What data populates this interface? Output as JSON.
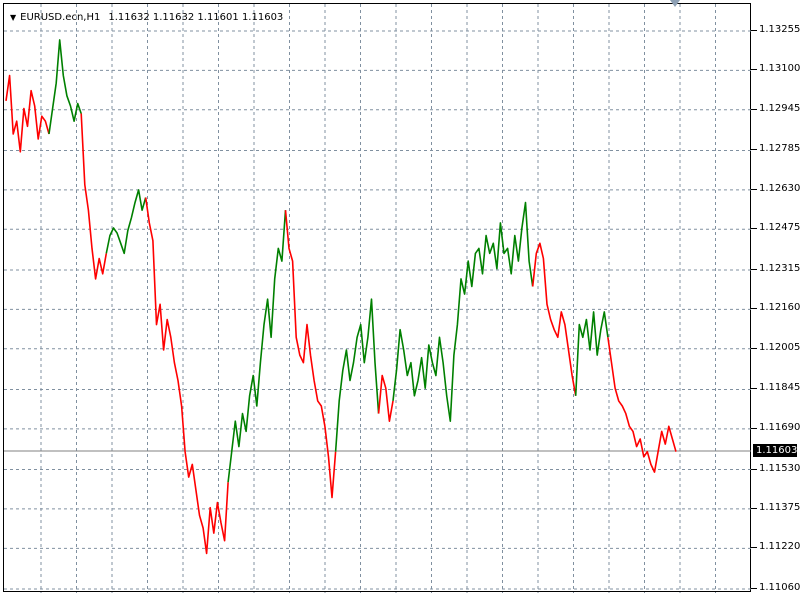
{
  "header": {
    "symbol": "EURUSD.ecn,H1",
    "ohlc": "1.11632 1.11632 1.11601 1.11603",
    "collapse_icon": "triangle-down-icon"
  },
  "price_scale": {
    "labels": [
      "1.13255",
      "1.13100",
      "1.12945",
      "1.12785",
      "1.12630",
      "1.12475",
      "1.12315",
      "1.12160",
      "1.12005",
      "1.11845",
      "1.11690",
      "1.11530",
      "1.11375",
      "1.11220",
      "1.11060"
    ],
    "current_price": "1.11603"
  },
  "colors": {
    "bull": "#008000",
    "bear": "#ff0000",
    "grid": "#8090a0",
    "current_line": "#808080"
  },
  "chart_data": {
    "type": "line",
    "title": "EURUSD.ecn,H1",
    "xlabel": "",
    "ylabel": "",
    "ylim": [
      1.1106,
      1.1326
    ],
    "grid": true,
    "grid_style": "dashed",
    "current_price": 1.11603,
    "series": [
      {
        "color": "#ff0000",
        "values": [
          1.1298,
          1.1308,
          1.1285,
          1.129,
          1.1278,
          1.1295,
          1.1288,
          1.1302,
          1.1296,
          1.1283,
          1.1292,
          1.129,
          1.1285
        ]
      },
      {
        "color": "#008000",
        "values": [
          1.1285,
          1.1295,
          1.1305,
          1.1322,
          1.1308,
          1.13,
          1.1296,
          1.129,
          1.1297,
          1.1293
        ]
      },
      {
        "color": "#ff0000",
        "values": [
          1.1293,
          1.1265,
          1.1255,
          1.124,
          1.1228,
          1.1236,
          1.123,
          1.1238
        ]
      },
      {
        "color": "#008000",
        "values": [
          1.1238,
          1.1245,
          1.1248,
          1.1246,
          1.1242,
          1.1238,
          1.1247,
          1.1252,
          1.1258,
          1.1263,
          1.1255,
          1.126
        ]
      },
      {
        "color": "#ff0000",
        "values": [
          1.126,
          1.125,
          1.1243,
          1.121,
          1.1218,
          1.12,
          1.1212,
          1.1205,
          1.1195,
          1.1188,
          1.1178,
          1.116,
          1.115,
          1.1155,
          1.1145,
          1.1135,
          1.113,
          1.112,
          1.1138,
          1.1128,
          1.114,
          1.1132,
          1.1125,
          1.1148
        ]
      },
      {
        "color": "#008000",
        "values": [
          1.1148,
          1.116,
          1.1172,
          1.1162,
          1.1175,
          1.1168,
          1.1182,
          1.119,
          1.1178,
          1.1195,
          1.121,
          1.122,
          1.1205,
          1.1228,
          1.124,
          1.1235,
          1.1255
        ]
      },
      {
        "color": "#ff0000",
        "values": [
          1.1255,
          1.124,
          1.1235,
          1.1205,
          1.1198,
          1.1195,
          1.121,
          1.1198,
          1.1188,
          1.118,
          1.1178,
          1.117,
          1.1158,
          1.1142,
          1.116
        ]
      },
      {
        "color": "#008000",
        "values": [
          1.116,
          1.118,
          1.1192,
          1.12,
          1.1188,
          1.1195,
          1.1205,
          1.121,
          1.1195,
          1.1205,
          1.122,
          1.1195,
          1.1175
        ]
      },
      {
        "color": "#ff0000",
        "values": [
          1.1175,
          1.119,
          1.1185,
          1.1172,
          1.118
        ]
      },
      {
        "color": "#008000",
        "values": [
          1.118,
          1.1192,
          1.1208,
          1.12,
          1.119,
          1.1195,
          1.1182,
          1.1188,
          1.1197,
          1.1185,
          1.1202,
          1.1195,
          1.119,
          1.1205,
          1.1195,
          1.1182,
          1.1172,
          1.1198,
          1.121,
          1.1228,
          1.1222,
          1.1235,
          1.1225,
          1.1238,
          1.124,
          1.123,
          1.1245,
          1.1238,
          1.1242,
          1.1232,
          1.125,
          1.1238,
          1.124,
          1.123,
          1.1245,
          1.1235,
          1.1248,
          1.1258,
          1.1235,
          1.1225
        ]
      },
      {
        "color": "#ff0000",
        "values": [
          1.1225,
          1.1238,
          1.1242,
          1.1236,
          1.1218,
          1.1212,
          1.1208,
          1.1205,
          1.1215,
          1.121,
          1.12,
          1.119,
          1.1182
        ]
      },
      {
        "color": "#008000",
        "values": [
          1.1182,
          1.121,
          1.1205,
          1.1212,
          1.12,
          1.1215,
          1.1198,
          1.1208,
          1.1215,
          1.1205
        ]
      },
      {
        "color": "#ff0000",
        "values": [
          1.1205,
          1.1195,
          1.1185,
          1.118,
          1.1178,
          1.1175,
          1.117,
          1.1168,
          1.1162,
          1.1165,
          1.1158,
          1.116,
          1.1155,
          1.1152,
          1.116,
          1.1168,
          1.1163,
          1.117,
          1.1165,
          1.116
        ]
      }
    ]
  }
}
